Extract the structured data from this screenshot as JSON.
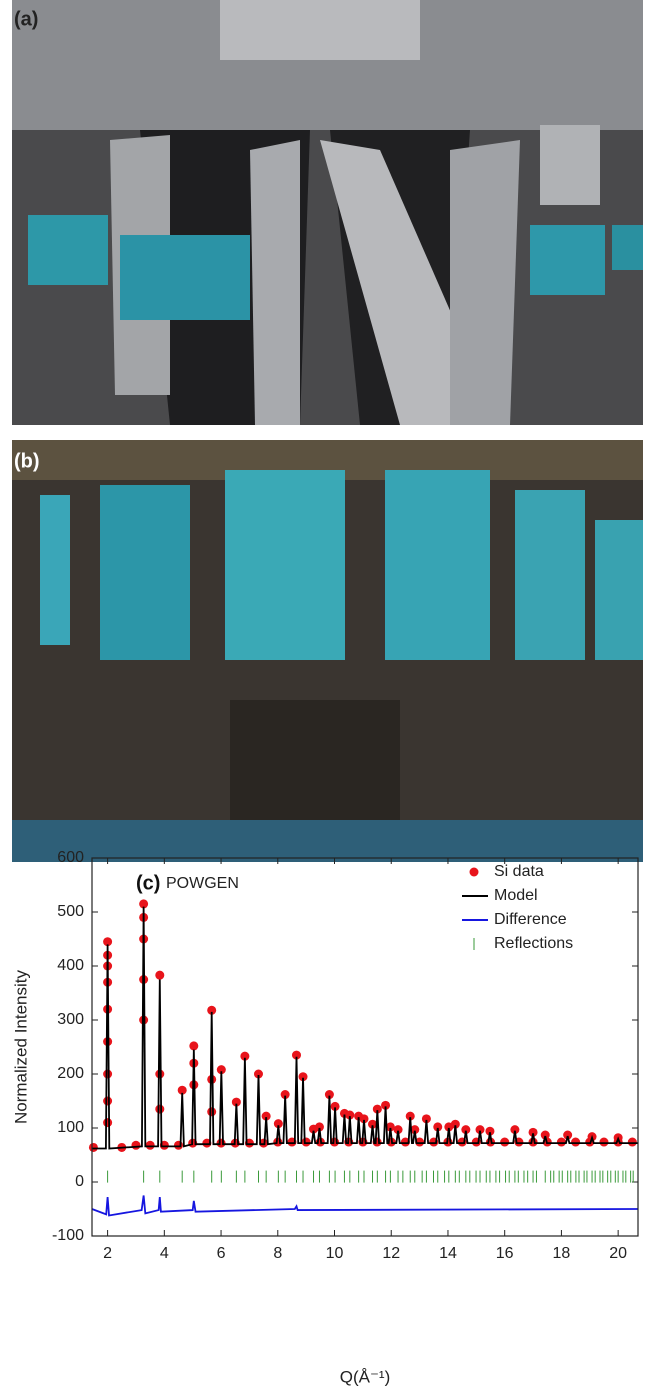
{
  "photos": [
    {
      "label": "(a)"
    },
    {
      "label": "(b)"
    }
  ],
  "chart_data": {
    "type": "line",
    "panel_label": "(c)",
    "annotation": "POWGEN",
    "x_label": "Q(Å⁻¹)",
    "y_label": "Normalized Intensity",
    "xlim": [
      1.45,
      20.7
    ],
    "ylim": [
      -100,
      600
    ],
    "xticks": [
      2,
      4,
      6,
      8,
      10,
      12,
      14,
      16,
      18,
      20
    ],
    "yticks": [
      -100,
      0,
      100,
      200,
      300,
      400,
      500,
      600
    ],
    "legend": "upper-right",
    "series": [
      {
        "name": "Si data",
        "style": "scatter",
        "color": "#e8141b",
        "x": [
          1.5,
          2.5,
          3.0,
          3.5,
          4.0,
          4.5,
          5.0,
          5.5,
          6.0,
          6.5,
          7.0,
          7.5,
          8.0,
          8.5,
          9.0,
          9.5,
          10.0,
          10.5,
          11.0,
          11.5,
          12.0,
          12.5,
          13.0,
          13.5,
          14.0,
          14.5,
          15.0,
          15.5,
          16.0,
          16.5,
          17.0,
          17.5,
          18.0,
          18.5,
          19.0,
          19.5,
          20.0,
          20.5,
          2.0,
          3.27,
          3.84,
          4.63,
          5.04,
          5.67,
          6.01,
          6.54,
          6.84,
          7.32,
          7.59,
          8.02,
          8.26,
          8.66,
          8.89,
          9.26,
          9.47,
          9.82,
          10.02,
          10.35,
          10.54,
          10.85,
          11.04,
          11.34,
          11.51,
          11.8,
          11.97,
          12.24,
          12.67,
          12.83,
          13.24,
          13.64,
          14.03,
          14.26,
          14.63,
          15.13,
          15.48,
          16.36,
          17.0,
          17.43,
          18.22,
          19.08,
          20.0,
          2.0,
          2.0,
          2.0,
          2.0,
          2.0,
          2.0,
          2.0,
          2.0,
          3.27,
          3.27,
          3.27,
          3.27,
          3.84,
          3.84,
          5.67,
          5.67,
          5.04,
          5.04
        ],
        "values": [
          64,
          64,
          68,
          68,
          68,
          68,
          72,
          72,
          72,
          72,
          72,
          72,
          74,
          74,
          74,
          74,
          74,
          74,
          74,
          74,
          74,
          74,
          74,
          74,
          74,
          74,
          74,
          74,
          74,
          74,
          74,
          74,
          74,
          74,
          74,
          74,
          74,
          74,
          445,
          515,
          383,
          170,
          252,
          318,
          208,
          148,
          233,
          200,
          122,
          108,
          162,
          235,
          195,
          98,
          102,
          162,
          140,
          127,
          124,
          122,
          117,
          107,
          135,
          142,
          102,
          97,
          122,
          97,
          117,
          102,
          102,
          107,
          97,
          97,
          94,
          97,
          92,
          87,
          87,
          84,
          82,
          420,
          400,
          370,
          320,
          260,
          200,
          150,
          110,
          490,
          450,
          375,
          300,
          200,
          135,
          190,
          130,
          220,
          180
        ]
      },
      {
        "name": "Model",
        "style": "line",
        "color": "#000000",
        "x": [
          1.45,
          1.94,
          2.0,
          2.06,
          3.21,
          3.27,
          3.33,
          3.78,
          3.84,
          3.9,
          4.57,
          4.63,
          4.69,
          4.98,
          5.04,
          5.1,
          5.61,
          5.67,
          5.73,
          5.95,
          6.01,
          6.07,
          6.48,
          6.54,
          6.6,
          6.78,
          6.84,
          6.9,
          7.26,
          7.32,
          7.38,
          7.53,
          7.59,
          7.65,
          7.96,
          8.02,
          8.08,
          8.2,
          8.26,
          8.32,
          8.6,
          8.66,
          8.72,
          8.83,
          8.89,
          8.95,
          9.2,
          9.26,
          9.32,
          9.41,
          9.47,
          9.53,
          9.76,
          9.82,
          9.88,
          9.96,
          10.02,
          10.08,
          10.29,
          10.35,
          10.41,
          10.48,
          10.54,
          10.6,
          10.79,
          10.85,
          10.91,
          10.98,
          11.04,
          11.1,
          11.28,
          11.34,
          11.4,
          11.45,
          11.51,
          11.57,
          11.74,
          11.8,
          11.86,
          11.91,
          11.97,
          12.03,
          12.18,
          12.24,
          12.3,
          12.61,
          12.67,
          12.73,
          12.77,
          12.83,
          12.89,
          13.18,
          13.24,
          13.3,
          13.58,
          13.64,
          13.7,
          13.97,
          14.03,
          14.09,
          14.2,
          14.26,
          14.32,
          14.57,
          14.63,
          14.69,
          15.07,
          15.13,
          15.19,
          15.42,
          15.48,
          15.54,
          16.3,
          16.36,
          16.42,
          16.94,
          17.0,
          17.06,
          17.37,
          17.43,
          17.49,
          18.16,
          18.22,
          18.28,
          19.02,
          19.08,
          19.14,
          19.94,
          20.0,
          20.06,
          20.7
        ],
        "values": [
          62,
          62,
          440,
          62,
          66,
          510,
          66,
          66,
          375,
          66,
          66,
          165,
          66,
          70,
          245,
          70,
          70,
          315,
          70,
          70,
          205,
          70,
          70,
          145,
          70,
          70,
          230,
          70,
          70,
          198,
          70,
          70,
          120,
          70,
          72,
          105,
          72,
          72,
          160,
          72,
          72,
          232,
          72,
          72,
          193,
          72,
          72,
          95,
          72,
          72,
          100,
          72,
          72,
          160,
          72,
          72,
          138,
          72,
          72,
          125,
          72,
          72,
          122,
          72,
          72,
          120,
          72,
          72,
          115,
          72,
          72,
          105,
          72,
          72,
          133,
          72,
          72,
          140,
          72,
          72,
          100,
          72,
          72,
          95,
          72,
          72,
          120,
          72,
          72,
          95,
          72,
          72,
          115,
          72,
          72,
          100,
          72,
          72,
          100,
          72,
          72,
          105,
          72,
          72,
          95,
          72,
          72,
          95,
          72,
          72,
          92,
          72,
          72,
          95,
          72,
          72,
          90,
          72,
          72,
          85,
          72,
          72,
          85,
          72,
          72,
          82,
          72,
          72,
          80,
          72,
          72
        ]
      },
      {
        "name": "Difference",
        "style": "line",
        "color": "#1616e0",
        "x": [
          1.45,
          1.95,
          2.0,
          2.05,
          3.2,
          3.27,
          3.33,
          3.8,
          3.84,
          3.88,
          5.0,
          5.04,
          5.1,
          8.6,
          8.66,
          8.7,
          20.7
        ],
        "values": [
          -50,
          -60,
          -28,
          -62,
          -52,
          -25,
          -58,
          -52,
          -28,
          -55,
          -52,
          -35,
          -55,
          -50,
          -45,
          -52,
          -50
        ]
      },
      {
        "name": "Reflections",
        "style": "tick",
        "color": "#3a9a3a",
        "x": [
          2.0,
          3.27,
          3.84,
          4.63,
          5.04,
          5.67,
          6.01,
          6.54,
          6.84,
          7.32,
          7.59,
          8.02,
          8.26,
          8.66,
          8.89,
          9.26,
          9.47,
          9.82,
          10.02,
          10.35,
          10.54,
          10.85,
          11.04,
          11.34,
          11.51,
          11.8,
          11.97,
          12.24,
          12.41,
          12.67,
          12.83,
          13.09,
          13.24,
          13.49,
          13.64,
          13.88,
          14.03,
          14.26,
          14.4,
          14.63,
          14.77,
          14.99,
          15.13,
          15.35,
          15.48,
          15.69,
          15.82,
          16.03,
          16.16,
          16.36,
          16.48,
          16.68,
          16.81,
          17.0,
          17.12,
          17.43,
          17.62,
          17.73,
          17.92,
          18.03,
          18.22,
          18.33,
          18.51,
          18.62,
          18.8,
          18.9,
          19.08,
          19.19,
          19.36,
          19.46,
          19.63,
          19.74,
          19.9,
          20.0,
          20.17,
          20.27,
          20.44,
          20.53
        ],
        "values": [
          10,
          10,
          10,
          10,
          10,
          10,
          10,
          10,
          10,
          10,
          10,
          10,
          10,
          10,
          10,
          10,
          10,
          10,
          10,
          10,
          10,
          10,
          10,
          10,
          10,
          10,
          10,
          10,
          10,
          10,
          10,
          10,
          10,
          10,
          10,
          10,
          10,
          10,
          10,
          10,
          10,
          10,
          10,
          10,
          10,
          10,
          10,
          10,
          10,
          10,
          10,
          10,
          10,
          10,
          10,
          10,
          10,
          10,
          10,
          10,
          10,
          10,
          10,
          10,
          10,
          10,
          10,
          10,
          10,
          10,
          10,
          10,
          10,
          10,
          10,
          10,
          10,
          10
        ]
      }
    ]
  }
}
